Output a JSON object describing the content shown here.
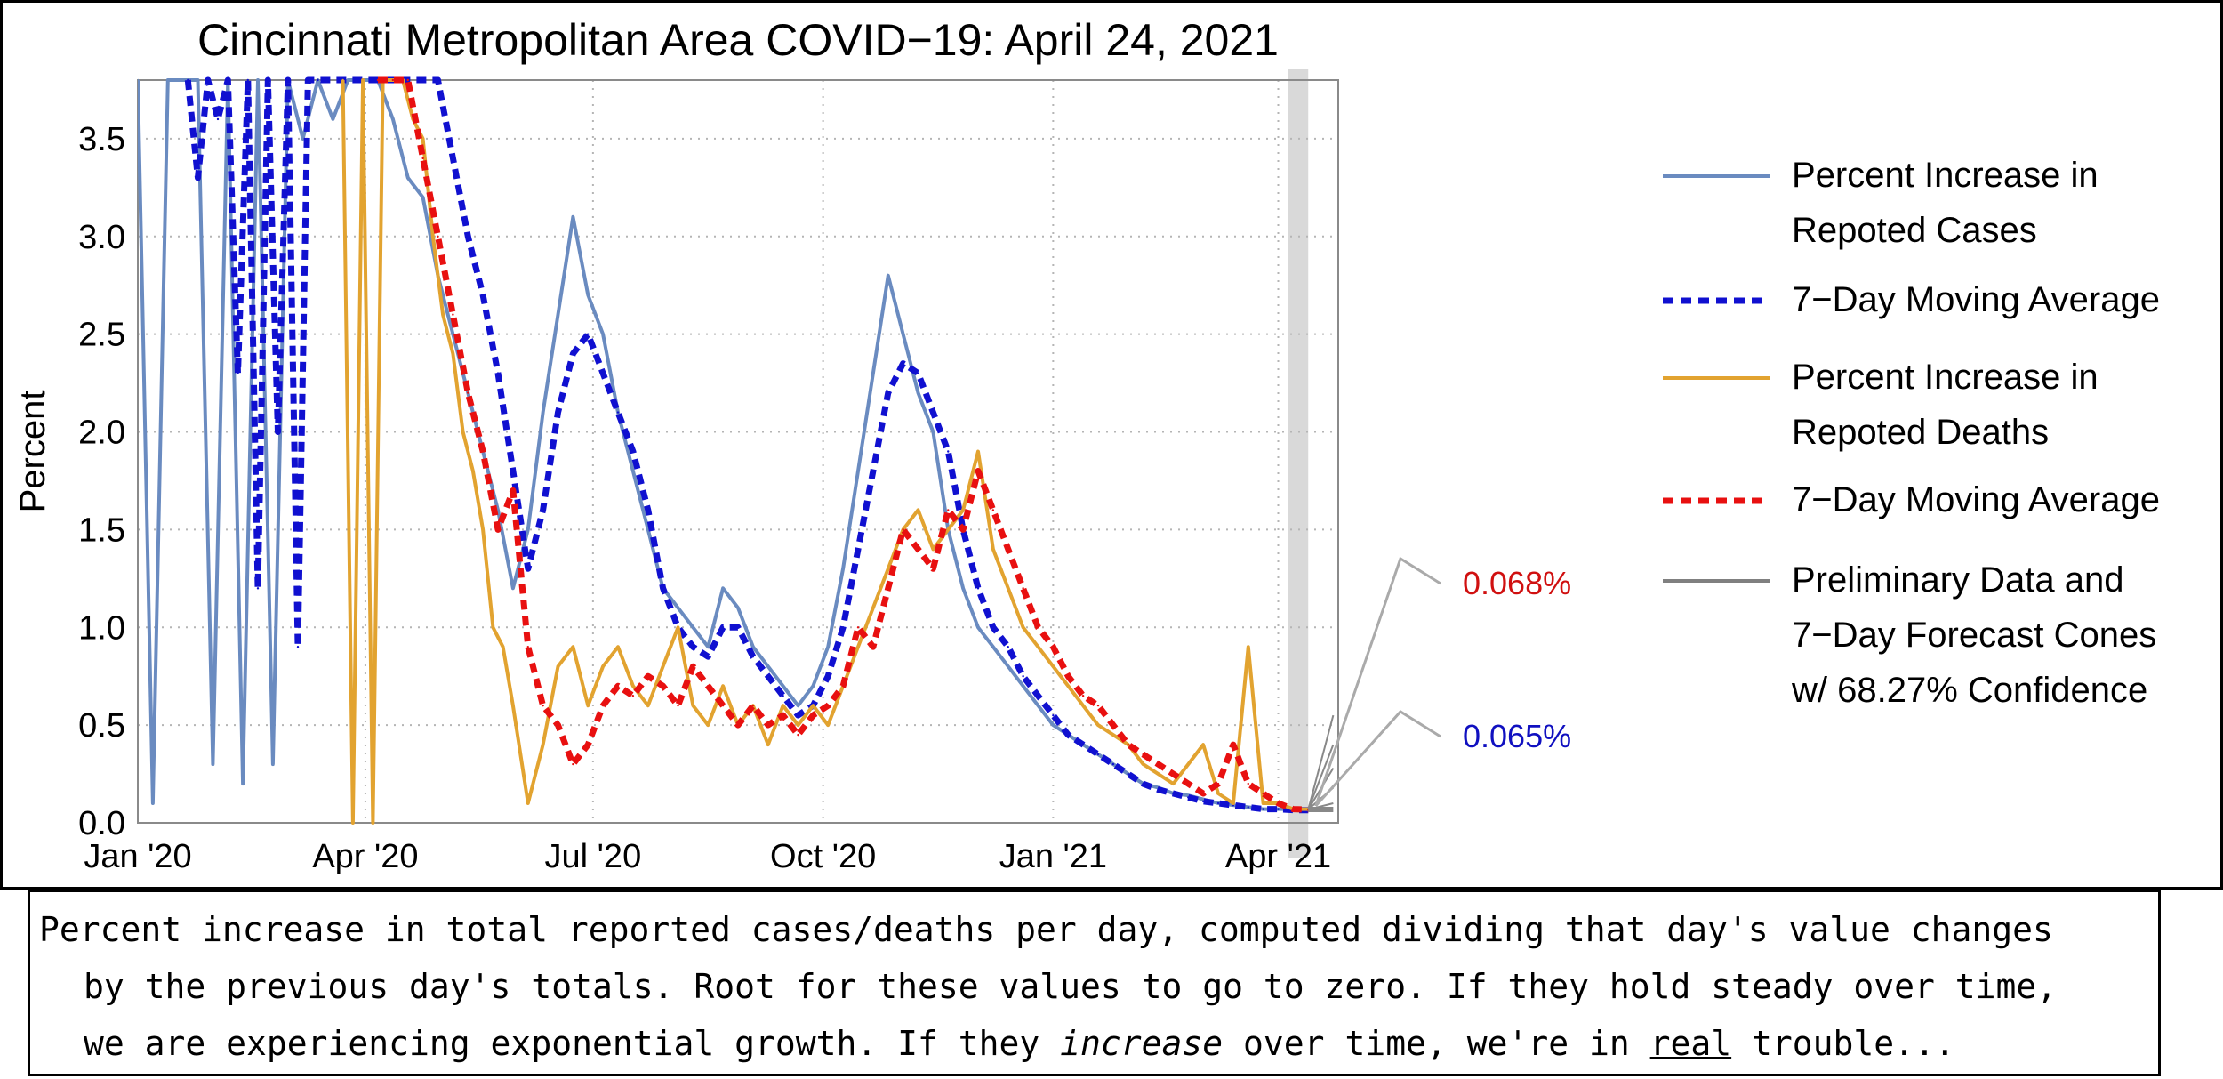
{
  "chart_data": {
    "type": "line",
    "title": "Cincinnati Metropolitan Area COVID−19: April 24, 2021",
    "ylabel": "Percent",
    "xlabel": "",
    "ylim": [
      0,
      3.8
    ],
    "xlim": [
      0,
      480
    ],
    "grid": true,
    "shaded_region_label": "",
    "x_ticks": [
      {
        "label": "Jan '20",
        "x": 0
      },
      {
        "label": "Apr '20",
        "x": 91
      },
      {
        "label": "Jul '20",
        "x": 182
      },
      {
        "label": "Oct '20",
        "x": 274
      },
      {
        "label": "Jan '21",
        "x": 366
      },
      {
        "label": "Apr '21",
        "x": 456
      }
    ],
    "y_ticks": [
      {
        "label": "0.0",
        "y": 0.0
      },
      {
        "label": "0.5",
        "y": 0.5
      },
      {
        "label": "1.0",
        "y": 1.0
      },
      {
        "label": "1.5",
        "y": 1.5
      },
      {
        "label": "2.0",
        "y": 2.0
      },
      {
        "label": "2.5",
        "y": 2.5
      },
      {
        "label": "3.0",
        "y": 3.0
      },
      {
        "label": "3.5",
        "y": 3.5
      }
    ],
    "series": [
      {
        "name": "Percent Increase in Repoted Cases",
        "color": "#6a8bc0",
        "style": "solid",
        "x": [
          0,
          6,
          12,
          18,
          24,
          30,
          36,
          42,
          48,
          54,
          60,
          66,
          72,
          78,
          84,
          90,
          96,
          102,
          108,
          114,
          120,
          126,
          132,
          138,
          144,
          150,
          156,
          162,
          168,
          174,
          180,
          186,
          192,
          198,
          204,
          210,
          216,
          222,
          228,
          234,
          240,
          246,
          252,
          258,
          264,
          270,
          276,
          282,
          288,
          294,
          300,
          306,
          312,
          318,
          324,
          330,
          336,
          342,
          348,
          354,
          360,
          366,
          372,
          378,
          384,
          390,
          396,
          402,
          408,
          414,
          420,
          426,
          432,
          438,
          444,
          450,
          456,
          462,
          468
        ],
        "y": [
          3.8,
          0.1,
          3.8,
          3.8,
          3.8,
          0.3,
          3.8,
          0.2,
          3.8,
          0.3,
          3.8,
          3.5,
          3.8,
          3.6,
          3.8,
          3.8,
          3.8,
          3.6,
          3.3,
          3.2,
          2.8,
          2.5,
          2.2,
          1.9,
          1.6,
          1.2,
          1.5,
          2.1,
          2.6,
          3.1,
          2.7,
          2.5,
          2.1,
          1.8,
          1.5,
          1.2,
          1.1,
          1.0,
          0.9,
          1.2,
          1.1,
          0.9,
          0.8,
          0.7,
          0.6,
          0.7,
          0.9,
          1.3,
          1.8,
          2.3,
          2.8,
          2.5,
          2.2,
          2.0,
          1.5,
          1.2,
          1.0,
          0.9,
          0.8,
          0.7,
          0.6,
          0.5,
          0.45,
          0.4,
          0.35,
          0.3,
          0.25,
          0.2,
          0.18,
          0.15,
          0.14,
          0.12,
          0.1,
          0.09,
          0.08,
          0.07,
          0.07,
          0.07,
          0.07
        ]
      },
      {
        "name": "7−Day Moving Average",
        "color": "#1010d0",
        "style": "dashed",
        "x": [
          20,
          24,
          28,
          32,
          36,
          40,
          44,
          48,
          52,
          56,
          60,
          64,
          68,
          72,
          120,
          126,
          132,
          138,
          144,
          150,
          156,
          162,
          168,
          174,
          180,
          186,
          192,
          198,
          204,
          210,
          216,
          222,
          228,
          234,
          240,
          246,
          252,
          258,
          264,
          270,
          276,
          282,
          288,
          294,
          300,
          306,
          312,
          318,
          324,
          330,
          336,
          342,
          348,
          354,
          360,
          366,
          372,
          378,
          384,
          390,
          396,
          402,
          408,
          414,
          420,
          426,
          432,
          438,
          444,
          450,
          456,
          462,
          468
        ],
        "y": [
          3.8,
          3.3,
          3.8,
          3.6,
          3.8,
          2.3,
          3.8,
          1.2,
          3.8,
          2.0,
          3.8,
          0.9,
          3.8,
          3.8,
          3.8,
          3.4,
          3.0,
          2.7,
          2.3,
          1.8,
          1.3,
          1.6,
          2.1,
          2.4,
          2.5,
          2.3,
          2.1,
          1.9,
          1.6,
          1.2,
          1.0,
          0.9,
          0.85,
          1.0,
          1.0,
          0.85,
          0.75,
          0.65,
          0.55,
          0.6,
          0.75,
          1.0,
          1.4,
          1.8,
          2.2,
          2.35,
          2.3,
          2.1,
          1.9,
          1.5,
          1.2,
          1.0,
          0.9,
          0.75,
          0.65,
          0.55,
          0.45,
          0.4,
          0.35,
          0.3,
          0.25,
          0.2,
          0.17,
          0.15,
          0.13,
          0.11,
          0.1,
          0.09,
          0.08,
          0.07,
          0.07,
          0.065,
          0.065
        ]
      },
      {
        "name": "Percent Increase in Repoted Deaths",
        "color": "#e2a330",
        "style": "solid",
        "x": [
          82,
          86,
          90,
          94,
          98,
          102,
          106,
          110,
          114,
          118,
          122,
          126,
          130,
          134,
          138,
          142,
          146,
          150,
          156,
          162,
          168,
          174,
          180,
          186,
          192,
          198,
          204,
          210,
          216,
          222,
          228,
          234,
          240,
          246,
          252,
          258,
          264,
          270,
          276,
          282,
          288,
          294,
          300,
          306,
          312,
          318,
          324,
          330,
          336,
          342,
          348,
          354,
          360,
          366,
          372,
          378,
          384,
          390,
          396,
          402,
          408,
          414,
          420,
          426,
          432,
          438,
          444,
          450,
          456,
          462,
          468
        ],
        "y": [
          3.8,
          0.0,
          3.8,
          0.0,
          3.8,
          3.8,
          3.8,
          3.6,
          3.5,
          3.0,
          2.6,
          2.4,
          2.0,
          1.8,
          1.5,
          1.0,
          0.9,
          0.6,
          0.1,
          0.4,
          0.8,
          0.9,
          0.6,
          0.8,
          0.9,
          0.7,
          0.6,
          0.8,
          1.0,
          0.6,
          0.5,
          0.7,
          0.5,
          0.6,
          0.4,
          0.6,
          0.5,
          0.6,
          0.5,
          0.7,
          0.9,
          1.1,
          1.3,
          1.5,
          1.6,
          1.4,
          1.5,
          1.6,
          1.9,
          1.4,
          1.2,
          1.0,
          0.9,
          0.8,
          0.7,
          0.6,
          0.5,
          0.45,
          0.4,
          0.3,
          0.25,
          0.2,
          0.3,
          0.4,
          0.15,
          0.1,
          0.9,
          0.1,
          0.1,
          0.07,
          0.07
        ]
      },
      {
        "name": "7−Day Moving Average",
        "color": "#e81010",
        "style": "dashed",
        "x": [
          96,
          102,
          108,
          114,
          120,
          126,
          132,
          138,
          144,
          150,
          156,
          162,
          168,
          174,
          180,
          186,
          192,
          198,
          204,
          210,
          216,
          222,
          228,
          234,
          240,
          246,
          252,
          258,
          264,
          270,
          276,
          282,
          288,
          294,
          300,
          306,
          312,
          318,
          324,
          330,
          336,
          342,
          348,
          354,
          360,
          366,
          372,
          378,
          384,
          390,
          396,
          402,
          408,
          414,
          420,
          426,
          432,
          438,
          444,
          450,
          456,
          462,
          468
        ],
        "y": [
          3.8,
          3.8,
          3.8,
          3.4,
          3.0,
          2.6,
          2.2,
          1.9,
          1.5,
          1.7,
          0.9,
          0.6,
          0.5,
          0.3,
          0.4,
          0.6,
          0.7,
          0.65,
          0.75,
          0.7,
          0.6,
          0.8,
          0.7,
          0.6,
          0.5,
          0.6,
          0.5,
          0.55,
          0.45,
          0.55,
          0.6,
          0.7,
          1.0,
          0.9,
          1.2,
          1.5,
          1.4,
          1.3,
          1.6,
          1.5,
          1.8,
          1.6,
          1.4,
          1.2,
          1.0,
          0.9,
          0.75,
          0.65,
          0.6,
          0.5,
          0.4,
          0.35,
          0.3,
          0.25,
          0.2,
          0.15,
          0.2,
          0.4,
          0.2,
          0.15,
          0.1,
          0.07,
          0.068
        ]
      },
      {
        "name": "Preliminary Data and 7−Day Forecast Cones w/ 68.27% Confidence",
        "color": "#808080",
        "style": "solid",
        "x": [
          470,
          477
        ],
        "y": [
          0.068,
          0.068
        ]
      }
    ],
    "annotations": [
      {
        "text": "0.068%",
        "color": "#d01010"
      },
      {
        "text": "0.065%",
        "color": "#1010c0"
      }
    ]
  },
  "legend": {
    "items": [
      {
        "lines": [
          "Percent Increase in",
          "Repoted Cases"
        ],
        "color": "#6a8bc0",
        "style": "solid"
      },
      {
        "lines": [
          "7−Day Moving Average"
        ],
        "color": "#1010d0",
        "style": "dashed"
      },
      {
        "lines": [
          "Percent Increase in",
          "Repoted Deaths"
        ],
        "color": "#e2a330",
        "style": "solid"
      },
      {
        "lines": [
          "7−Day Moving Average"
        ],
        "color": "#e81010",
        "style": "dashed"
      },
      {
        "lines": [
          "Preliminary Data and",
          "7−Day Forecast Cones",
          "w/ 68.27% Confidence"
        ],
        "color": "#808080",
        "style": "solid"
      }
    ]
  },
  "caption": {
    "line1": "Percent increase in total reported cases/deaths per day, computed dividing that day's value changes",
    "line2": "by the previous day's totals. Root for these values to go to zero. If they hold steady over time,",
    "line3_a": "we are experiencing exponential growth. If they ",
    "line3_em": "increase",
    "line3_b": " over time, we're in ",
    "line3_u": "real",
    "line3_c": " trouble..."
  }
}
